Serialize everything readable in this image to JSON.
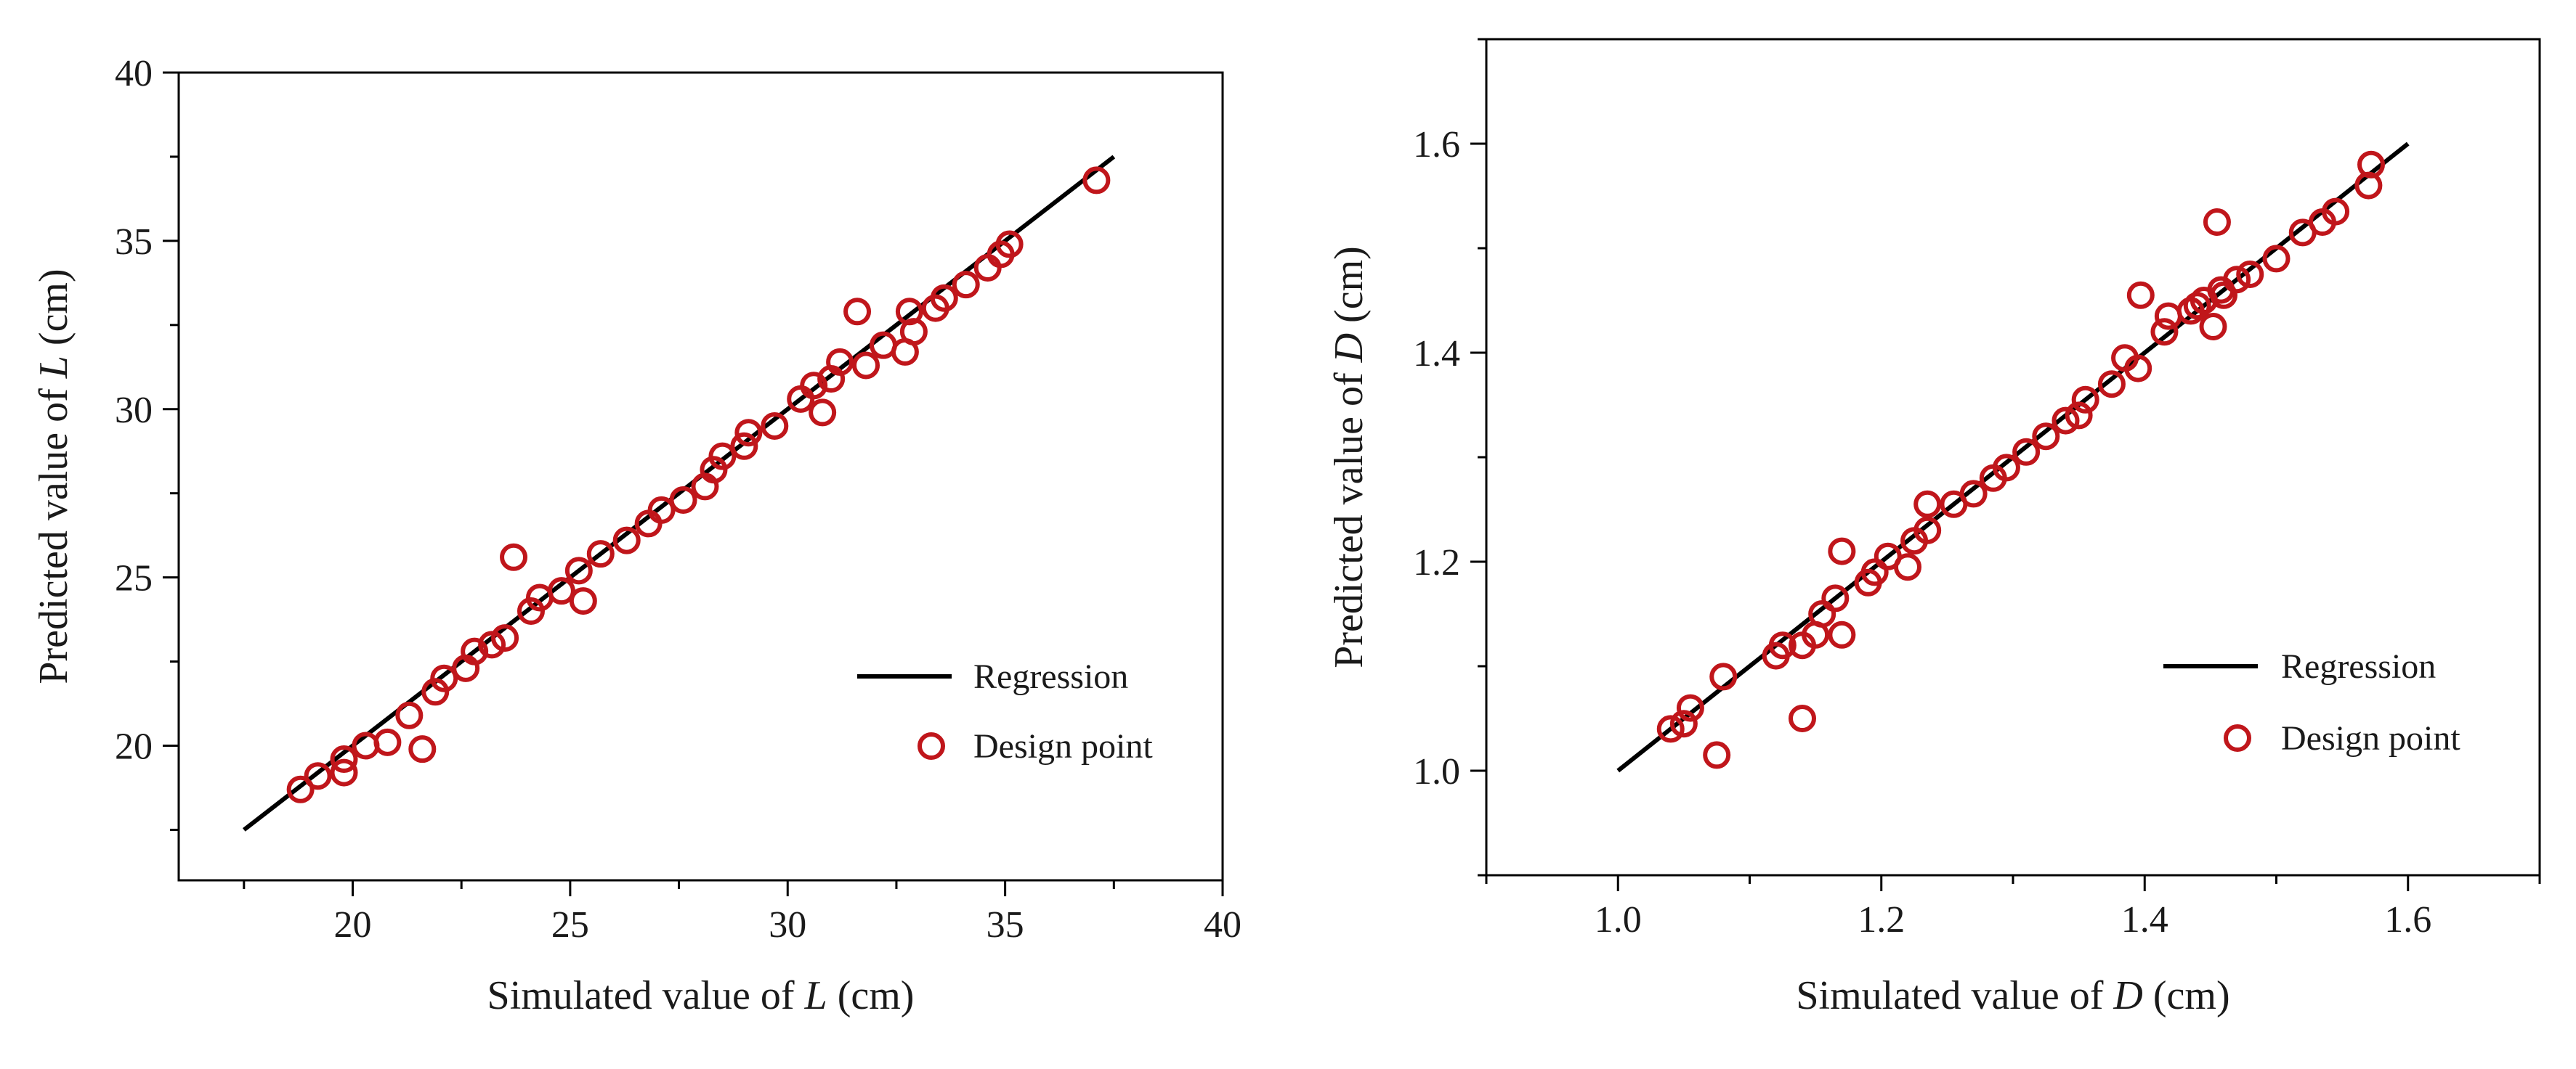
{
  "chart_data": [
    {
      "type": "scatter",
      "xlabel": "Simulated value of L (cm)",
      "ylabel": "Predicted value of L (cm)",
      "xlabel_parts": {
        "pre": "Simulated value of ",
        "var": "L",
        "post": " (cm)"
      },
      "ylabel_parts": {
        "pre": "Predicted value of ",
        "var": "L",
        "post": " (cm)"
      },
      "xlim": [
        16,
        40
      ],
      "ylim": [
        16,
        40
      ],
      "xticks": [
        20,
        25,
        30,
        35,
        40
      ],
      "yticks": [
        20,
        25,
        30,
        35,
        40
      ],
      "xticklabels": [
        "20",
        "25",
        "30",
        "35",
        "40"
      ],
      "yticklabels": [
        "20",
        "25",
        "30",
        "35",
        "40"
      ],
      "minor_step": 2.5,
      "grid": false,
      "legend_position": "bottom-right",
      "series": [
        {
          "name": "Regression",
          "kind": "line",
          "color": "#000000",
          "x": [
            17.5,
            37.5
          ],
          "y": [
            17.5,
            37.5
          ]
        },
        {
          "name": "Design point",
          "kind": "scatter",
          "color": "#c0161b",
          "x": [
            18.8,
            19.2,
            19.8,
            19.8,
            20.3,
            20.8,
            21.3,
            21.6,
            21.9,
            22.1,
            22.6,
            22.8,
            23.2,
            23.5,
            23.7,
            24.1,
            24.3,
            24.8,
            25.2,
            25.3,
            25.7,
            26.3,
            26.8,
            27.1,
            27.6,
            28.1,
            28.3,
            28.5,
            29.0,
            29.1,
            29.7,
            30.3,
            30.6,
            30.8,
            31.0,
            31.2,
            31.6,
            31.8,
            32.2,
            32.7,
            32.8,
            32.9,
            33.4,
            33.6,
            34.1,
            34.6,
            34.9,
            35.1,
            37.1
          ],
          "y": [
            18.7,
            19.1,
            19.2,
            19.6,
            20.0,
            20.1,
            20.9,
            19.9,
            21.6,
            22.0,
            22.3,
            22.8,
            23.0,
            23.2,
            25.6,
            24.0,
            24.4,
            24.6,
            25.2,
            24.3,
            25.7,
            26.1,
            26.6,
            27.0,
            27.3,
            27.7,
            28.2,
            28.6,
            28.9,
            29.3,
            29.5,
            30.3,
            30.7,
            29.9,
            30.9,
            31.4,
            32.9,
            31.3,
            31.9,
            31.7,
            32.9,
            32.3,
            33.0,
            33.3,
            33.7,
            34.2,
            34.6,
            34.9,
            36.8
          ]
        }
      ]
    },
    {
      "type": "scatter",
      "xlabel": "Simulated value of D (cm)",
      "ylabel": "Predicted value of D (cm)",
      "xlabel_parts": {
        "pre": "Simulated value of ",
        "var": "D",
        "post": " (cm)"
      },
      "ylabel_parts": {
        "pre": "Predicted value of ",
        "var": "D",
        "post": " (cm)"
      },
      "xlim": [
        0.9,
        1.7
      ],
      "ylim": [
        0.9,
        1.7
      ],
      "xticks": [
        1.0,
        1.2,
        1.4,
        1.6
      ],
      "yticks": [
        1.0,
        1.2,
        1.4,
        1.6
      ],
      "xticklabels": [
        "1.0",
        "1.2",
        "1.4",
        "1.6"
      ],
      "yticklabels": [
        "1.0",
        "1.2",
        "1.4",
        "1.6"
      ],
      "minor_step": 0.1,
      "grid": false,
      "legend_position": "bottom-right",
      "series": [
        {
          "name": "Regression",
          "kind": "line",
          "color": "#000000",
          "x": [
            1.0,
            1.6
          ],
          "y": [
            1.0,
            1.6
          ]
        },
        {
          "name": "Design point",
          "kind": "scatter",
          "color": "#c0161b",
          "x": [
            1.04,
            1.05,
            1.055,
            1.075,
            1.08,
            1.12,
            1.125,
            1.14,
            1.14,
            1.15,
            1.155,
            1.165,
            1.17,
            1.17,
            1.19,
            1.195,
            1.205,
            1.22,
            1.225,
            1.235,
            1.235,
            1.255,
            1.27,
            1.285,
            1.295,
            1.31,
            1.325,
            1.34,
            1.35,
            1.355,
            1.375,
            1.385,
            1.395,
            1.397,
            1.415,
            1.418,
            1.435,
            1.44,
            1.445,
            1.452,
            1.455,
            1.458,
            1.46,
            1.47,
            1.48,
            1.5,
            1.52,
            1.535,
            1.545,
            1.57,
            1.572
          ],
          "y": [
            1.04,
            1.045,
            1.06,
            1.015,
            1.09,
            1.11,
            1.12,
            1.05,
            1.12,
            1.13,
            1.15,
            1.165,
            1.21,
            1.13,
            1.18,
            1.19,
            1.205,
            1.195,
            1.22,
            1.23,
            1.255,
            1.255,
            1.265,
            1.28,
            1.29,
            1.305,
            1.32,
            1.335,
            1.34,
            1.355,
            1.37,
            1.395,
            1.385,
            1.455,
            1.42,
            1.435,
            1.44,
            1.445,
            1.45,
            1.425,
            1.525,
            1.46,
            1.455,
            1.47,
            1.475,
            1.49,
            1.515,
            1.525,
            1.535,
            1.56,
            1.58
          ]
        }
      ]
    }
  ]
}
